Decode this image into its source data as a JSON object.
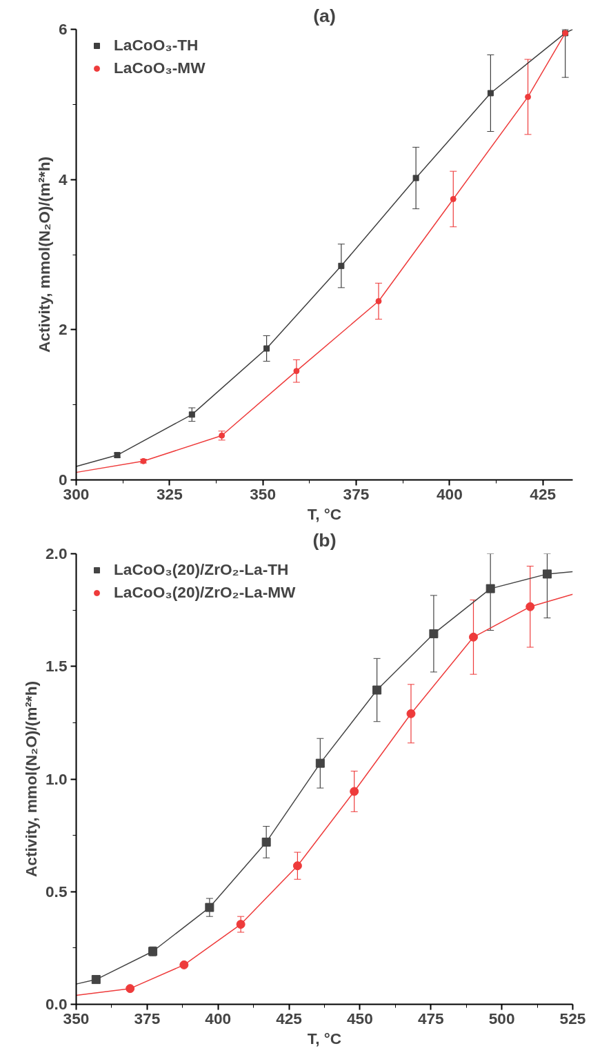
{
  "chart_data": [
    {
      "type": "line",
      "title": "(a)",
      "xlabel": "T, °C",
      "ylabel": "Activity, mmol(N₂O)/(m²*h)",
      "xlim": [
        300,
        433
      ],
      "xticks": [
        300,
        325,
        350,
        375,
        400,
        425
      ],
      "ylim": [
        0,
        6
      ],
      "yticks": [
        0,
        2,
        4,
        6
      ],
      "legend": "top left",
      "series": [
        {
          "type": "scatter",
          "name": "LaCoO₃-TH",
          "color": "#3f3f3f",
          "marker": "square",
          "x": [
            311,
            331,
            351,
            371,
            391,
            411,
            431
          ],
          "values": [
            0.33,
            0.87,
            1.75,
            2.85,
            4.02,
            5.15,
            5.95
          ],
          "errors": [
            0.03,
            0.09,
            0.17,
            0.29,
            0.41,
            0.51,
            [
              5.36,
              6.0
            ]
          ]
        },
        {
          "marker": "none",
          "color": "#3f3f3f",
          "x": [
            300,
            311,
            331,
            351,
            371,
            391,
            411,
            431,
            433
          ],
          "values": [
            0.18,
            0.33,
            0.87,
            1.75,
            2.85,
            4.02,
            5.15,
            5.95,
            6.0
          ]
        },
        {
          "type": "scatter",
          "name": "LaCoO₃-MW",
          "color": "#ee3b3b",
          "marker": "circle",
          "x": [
            318,
            339,
            359,
            381,
            401,
            421,
            431
          ],
          "values": [
            0.25,
            0.59,
            1.45,
            2.38,
            3.74,
            5.1,
            5.95
          ],
          "errors": [
            0.025,
            0.06,
            0.15,
            0.24,
            0.37,
            0.5,
            null
          ]
        },
        {
          "marker": "none",
          "color": "#ee3b3b",
          "x": [
            300,
            318,
            339,
            359,
            381,
            401,
            421,
            431
          ],
          "values": [
            0.1,
            0.25,
            0.59,
            1.45,
            2.38,
            3.74,
            5.1,
            5.95
          ]
        }
      ]
    },
    {
      "type": "line",
      "title": "(b)",
      "xlabel": "T, °C",
      "ylabel": "Activity, mmol(N₂O)/(m²*h)",
      "xlim": [
        350,
        525
      ],
      "xticks": [
        350,
        375,
        400,
        425,
        450,
        475,
        500,
        525
      ],
      "ylim": [
        0,
        2
      ],
      "yticks": [
        {
          "value": 0,
          "label": "0.0"
        },
        0.5,
        {
          "value": 1,
          "label": "1.0"
        },
        1.5,
        {
          "value": 2,
          "label": "2.0"
        }
      ],
      "legend": "top left",
      "series": [
        {
          "type": "scatter",
          "name": "LaCoO₃(20)/ZrO₂-La-TH",
          "color": "#444444",
          "marker": "square",
          "x": [
            357,
            377,
            397,
            417,
            436,
            456,
            476,
            496,
            516
          ],
          "values": [
            0.11,
            0.235,
            0.43,
            0.72,
            1.07,
            1.395,
            1.645,
            1.845,
            1.91
          ],
          "errors": [
            null,
            0.02,
            0.04,
            0.07,
            0.11,
            0.14,
            0.17,
            [
              1.66,
              2.0
            ],
            [
              1.715,
              2.0
            ]
          ]
        },
        {
          "marker": "none",
          "color": "#444444",
          "x": [
            350,
            357,
            377,
            397,
            417,
            436,
            456,
            476,
            496,
            516,
            525
          ],
          "values": [
            0.09,
            0.11,
            0.235,
            0.43,
            0.72,
            1.07,
            1.395,
            1.645,
            1.845,
            1.91,
            1.92
          ]
        },
        {
          "type": "scatter",
          "name": "LaCoO₃(20)/ZrO₂-La-MW",
          "color": "#ee3b3b",
          "marker": "circle",
          "x": [
            369,
            388,
            408,
            428,
            448,
            468,
            490,
            510
          ],
          "values": [
            0.07,
            0.175,
            0.355,
            0.615,
            0.945,
            1.29,
            1.63,
            1.765
          ],
          "errors": [
            null,
            null,
            0.035,
            0.06,
            0.09,
            0.13,
            0.165,
            0.18
          ]
        },
        {
          "marker": "none",
          "color": "#ee3b3b",
          "x": [
            350,
            369,
            388,
            408,
            428,
            448,
            468,
            490,
            510,
            525
          ],
          "values": [
            0.04,
            0.07,
            0.175,
            0.355,
            0.615,
            0.945,
            1.29,
            1.63,
            1.765,
            1.82
          ]
        }
      ]
    }
  ]
}
